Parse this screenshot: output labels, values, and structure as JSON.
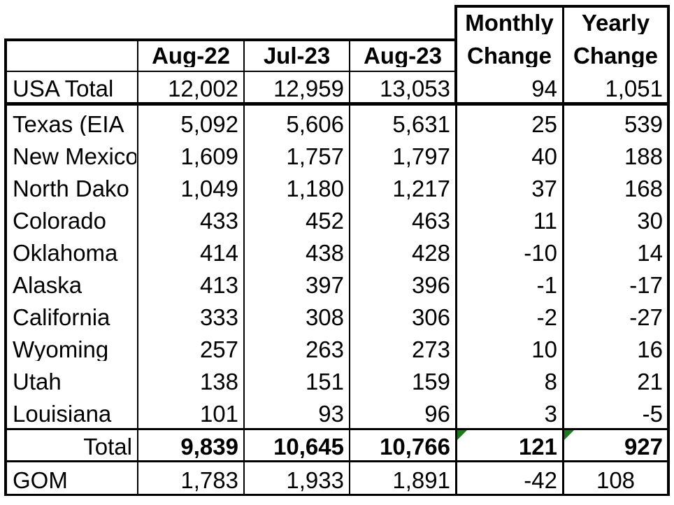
{
  "header": {
    "row1": {
      "monthly_top": "Monthly",
      "yearly_top": "Yearly"
    },
    "row2": {
      "col_aug22": "Aug-22",
      "col_jul23": "Jul-23",
      "col_aug23": "Aug-23",
      "monthly_bottom": "Change",
      "yearly_bottom": "Change"
    }
  },
  "usa_total": {
    "label": "USA Total",
    "values": [
      "12,002",
      "12,959",
      "13,053",
      "94",
      "1,051"
    ]
  },
  "states": [
    {
      "label": "Texas (EIA",
      "values": [
        "5,092",
        "5,606",
        "5,631",
        "25",
        "539"
      ]
    },
    {
      "label": "New Mexico",
      "values": [
        "1,609",
        "1,757",
        "1,797",
        "40",
        "188"
      ]
    },
    {
      "label": "North Dako",
      "values": [
        "1,049",
        "1,180",
        "1,217",
        "37",
        "168"
      ]
    },
    {
      "label": "Colorado",
      "values": [
        "433",
        "452",
        "463",
        "11",
        "30"
      ]
    },
    {
      "label": "Oklahoma",
      "values": [
        "414",
        "438",
        "428",
        "-10",
        "14"
      ]
    },
    {
      "label": "Alaska",
      "values": [
        "413",
        "397",
        "396",
        "-1",
        "-17"
      ]
    },
    {
      "label": "California",
      "values": [
        "333",
        "308",
        "306",
        "-2",
        "-27"
      ]
    },
    {
      "label": "Wyoming",
      "values": [
        "257",
        "263",
        "273",
        "10",
        "16"
      ]
    },
    {
      "label": "Utah",
      "values": [
        "138",
        "151",
        "159",
        "8",
        "21"
      ]
    },
    {
      "label": "Louisiana",
      "values": [
        "101",
        "93",
        "96",
        "3",
        "-5"
      ]
    }
  ],
  "total": {
    "label": "Total",
    "values": [
      "9,839",
      "10,645",
      "10,766",
      "121",
      "927"
    ]
  },
  "gom": {
    "label": "GOM",
    "values": [
      "1,783",
      "1,933",
      "1,891",
      "-42",
      "108"
    ]
  },
  "colors": {
    "grid": "#000000",
    "comment_marker": "#1e7a1e"
  }
}
